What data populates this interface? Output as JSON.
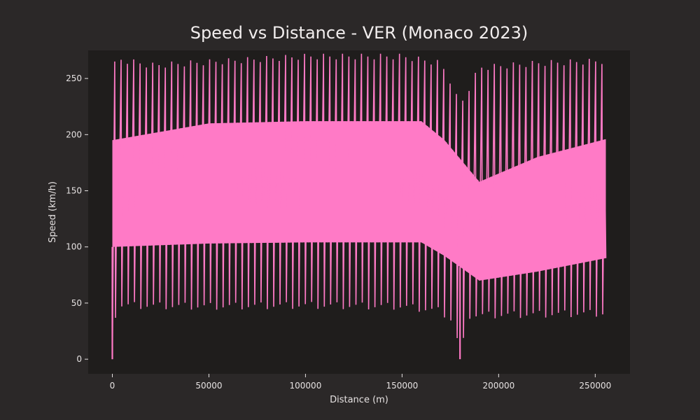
{
  "chart_data": {
    "type": "line",
    "title": "Speed vs Distance - VER (Monaco 2023)",
    "xlabel": "Distance (m)",
    "ylabel": "Speed (km/h)",
    "xlim": [
      -12500,
      268000
    ],
    "ylim": [
      -13,
      275
    ],
    "x_ticks": [
      0,
      50000,
      100000,
      150000,
      200000,
      250000
    ],
    "y_ticks": [
      0,
      50,
      100,
      150,
      200,
      250
    ],
    "grid": false,
    "series": [
      {
        "color": "#ff7ac6",
        "laps": 78,
        "x_range": [
          0,
          255500
        ],
        "lap_profile_reading": "each lap (~3276 m) swings from a slow-corner minimum to a straight-line maximum; dense oscillation",
        "max_speed_envelope": [
          {
            "x": 0,
            "y": 257
          },
          {
            "x": 2000,
            "y": 270
          },
          {
            "x": 20000,
            "y": 264
          },
          {
            "x": 60000,
            "y": 268
          },
          {
            "x": 100000,
            "y": 272
          },
          {
            "x": 150000,
            "y": 272
          },
          {
            "x": 170000,
            "y": 266
          },
          {
            "x": 175000,
            "y": 250
          },
          {
            "x": 180000,
            "y": 228
          },
          {
            "x": 190000,
            "y": 262
          },
          {
            "x": 220000,
            "y": 266
          },
          {
            "x": 255500,
            "y": 268
          }
        ],
        "min_speed_envelope": [
          {
            "x": 0,
            "y": 0
          },
          {
            "x": 2000,
            "y": 45
          },
          {
            "x": 50000,
            "y": 44
          },
          {
            "x": 100000,
            "y": 45
          },
          {
            "x": 150000,
            "y": 44
          },
          {
            "x": 170000,
            "y": 40
          },
          {
            "x": 177000,
            "y": 30
          },
          {
            "x": 180000,
            "y": 0
          },
          {
            "x": 185000,
            "y": 36
          },
          {
            "x": 220000,
            "y": 37
          },
          {
            "x": 255500,
            "y": 38
          }
        ],
        "dense_band": [
          {
            "x": 0,
            "low": 100,
            "high": 195
          },
          {
            "x": 50000,
            "low": 103,
            "high": 210
          },
          {
            "x": 100000,
            "low": 104,
            "high": 212
          },
          {
            "x": 160000,
            "low": 104,
            "high": 212
          },
          {
            "x": 172000,
            "low": 92,
            "high": 195
          },
          {
            "x": 190000,
            "low": 70,
            "high": 158
          },
          {
            "x": 220000,
            "low": 78,
            "high": 180
          },
          {
            "x": 255500,
            "low": 90,
            "high": 196
          }
        ]
      }
    ]
  },
  "colors": {
    "figure_bg": "#2b2828",
    "plot_bg": "#1f1d1c",
    "line": "#ff7ac6",
    "text": "#eeeaea"
  }
}
